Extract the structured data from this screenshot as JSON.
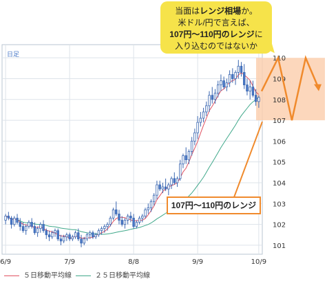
{
  "callout": {
    "line1": "当面は",
    "line1_em": "レンジ相場",
    "line1_end": "か。",
    "line2": "米ドル/円で言えば、",
    "line3_em": "107円～110円のレンジ",
    "line3_end": "に",
    "line4": "入り込むのではないか",
    "range_label": "107円～110円のレンジ"
  },
  "chart_data": {
    "type": "candlestick",
    "period_label": "日足",
    "ylim": [
      100.6,
      110.6
    ],
    "y_ticks": [
      101,
      102,
      103,
      104,
      105,
      106,
      107,
      108,
      109,
      110
    ],
    "x_ticks": [
      "6/9",
      "7/9",
      "8/8",
      "9/9",
      "10/9"
    ],
    "x_tick_index": [
      0,
      22,
      44,
      66,
      87
    ],
    "range_band": [
      107,
      110
    ],
    "forecast_path": [
      108.4,
      110,
      107,
      110,
      108.6
    ],
    "candles": [
      [
        102.2,
        102.5,
        102.0,
        102.4
      ],
      [
        102.4,
        102.6,
        102.2,
        102.3
      ],
      [
        102.3,
        102.4,
        101.8,
        102.0
      ],
      [
        102.0,
        102.4,
        101.9,
        102.3
      ],
      [
        102.3,
        102.5,
        102.0,
        102.1
      ],
      [
        102.1,
        102.3,
        101.7,
        101.9
      ],
      [
        101.9,
        102.1,
        101.6,
        101.7
      ],
      [
        101.7,
        102.0,
        101.5,
        101.9
      ],
      [
        101.9,
        102.2,
        101.8,
        102.1
      ],
      [
        102.1,
        102.3,
        101.8,
        101.9
      ],
      [
        101.9,
        102.1,
        101.5,
        101.6
      ],
      [
        101.6,
        101.9,
        101.4,
        101.8
      ],
      [
        101.8,
        102.1,
        101.6,
        102.0
      ],
      [
        102.0,
        102.2,
        101.6,
        101.7
      ],
      [
        101.7,
        101.8,
        101.3,
        101.5
      ],
      [
        101.5,
        101.7,
        101.2,
        101.4
      ],
      [
        101.4,
        101.7,
        101.3,
        101.6
      ],
      [
        101.6,
        101.8,
        101.4,
        101.7
      ],
      [
        101.7,
        101.8,
        101.2,
        101.3
      ],
      [
        101.3,
        101.5,
        101.0,
        101.2
      ],
      [
        101.2,
        101.5,
        101.1,
        101.4
      ],
      [
        101.4,
        101.6,
        101.2,
        101.5
      ],
      [
        101.5,
        101.6,
        101.2,
        101.3
      ],
      [
        101.3,
        101.5,
        101.2,
        101.4
      ],
      [
        101.4,
        101.7,
        101.3,
        101.6
      ],
      [
        101.6,
        101.8,
        101.2,
        101.3
      ],
      [
        101.3,
        101.5,
        100.9,
        101.1
      ],
      [
        101.1,
        101.4,
        101.0,
        101.3
      ],
      [
        101.3,
        101.6,
        101.2,
        101.5
      ],
      [
        101.5,
        101.7,
        101.3,
        101.6
      ],
      [
        101.6,
        101.7,
        101.3,
        101.4
      ],
      [
        101.4,
        101.6,
        101.3,
        101.5
      ],
      [
        101.5,
        101.8,
        101.4,
        101.7
      ],
      [
        101.7,
        101.9,
        101.5,
        101.8
      ],
      [
        101.8,
        102.0,
        101.6,
        101.9
      ],
      [
        101.9,
        102.1,
        101.7,
        102.0
      ],
      [
        102.0,
        102.4,
        101.9,
        102.3
      ],
      [
        102.3,
        102.8,
        102.2,
        102.7
      ],
      [
        102.7,
        103.1,
        102.4,
        102.5
      ],
      [
        102.5,
        102.7,
        102.0,
        102.2
      ],
      [
        102.2,
        102.4,
        101.9,
        102.0
      ],
      [
        102.0,
        102.3,
        101.8,
        102.2
      ],
      [
        102.2,
        102.5,
        102.0,
        102.4
      ],
      [
        102.4,
        102.6,
        102.1,
        102.3
      ],
      [
        102.3,
        102.5,
        101.8,
        101.9
      ],
      [
        101.9,
        102.2,
        101.8,
        102.1
      ],
      [
        102.1,
        102.4,
        102.0,
        102.3
      ],
      [
        102.3,
        102.5,
        102.1,
        102.4
      ],
      [
        102.4,
        102.8,
        102.3,
        102.7
      ],
      [
        102.7,
        103.0,
        102.5,
        102.8
      ],
      [
        102.8,
        103.2,
        102.6,
        103.1
      ],
      [
        103.1,
        103.5,
        102.9,
        103.4
      ],
      [
        103.4,
        104.1,
        103.2,
        103.9
      ],
      [
        103.9,
        104.1,
        103.6,
        103.7
      ],
      [
        103.7,
        104.0,
        103.5,
        103.8
      ],
      [
        103.8,
        104.2,
        103.6,
        103.7
      ],
      [
        103.7,
        104.0,
        103.4,
        103.9
      ],
      [
        103.9,
        104.3,
        103.7,
        104.2
      ],
      [
        104.2,
        104.5,
        103.9,
        104.0
      ],
      [
        104.0,
        104.3,
        103.8,
        104.2
      ],
      [
        104.2,
        105.1,
        104.1,
        104.9
      ],
      [
        104.9,
        105.4,
        104.7,
        105.3
      ],
      [
        105.3,
        105.7,
        104.9,
        105.1
      ],
      [
        105.1,
        105.6,
        104.9,
        105.5
      ],
      [
        105.5,
        106.2,
        105.3,
        106.0
      ],
      [
        106.0,
        106.6,
        105.8,
        106.4
      ],
      [
        106.4,
        107.2,
        106.1,
        106.9
      ],
      [
        106.9,
        107.4,
        106.7,
        107.1
      ],
      [
        107.1,
        107.6,
        106.9,
        107.4
      ],
      [
        107.4,
        107.9,
        107.2,
        107.7
      ],
      [
        107.7,
        108.4,
        107.4,
        108.2
      ],
      [
        108.2,
        108.6,
        107.8,
        108.0
      ],
      [
        108.0,
        108.5,
        107.8,
        108.3
      ],
      [
        108.3,
        108.9,
        108.1,
        108.7
      ],
      [
        108.7,
        109.2,
        108.4,
        108.9
      ],
      [
        108.9,
        109.1,
        108.5,
        108.6
      ],
      [
        108.6,
        109.0,
        108.4,
        108.8
      ],
      [
        108.8,
        109.4,
        108.6,
        109.2
      ],
      [
        109.2,
        109.5,
        108.8,
        109.0
      ],
      [
        109.0,
        109.4,
        108.7,
        109.3
      ],
      [
        109.3,
        109.9,
        109.0,
        109.6
      ],
      [
        109.6,
        109.8,
        109.1,
        109.3
      ],
      [
        109.3,
        109.7,
        108.5,
        108.7
      ],
      [
        108.7,
        109.0,
        108.2,
        108.4
      ],
      [
        108.4,
        108.9,
        108.0,
        108.6
      ],
      [
        108.6,
        108.9,
        108.1,
        108.2
      ],
      [
        108.2,
        108.5,
        107.7,
        107.9
      ],
      [
        107.9,
        108.2,
        107.6,
        108.1
      ]
    ],
    "series": [
      {
        "name": "５日移動平均線",
        "color": "#e05060"
      },
      {
        "name": "２５日移動平均線",
        "color": "#3fa88a"
      }
    ],
    "colors": {
      "up": "#ffffff",
      "down": "#4a79c8",
      "candle_stroke": "#3a66b0",
      "band": "#fbd0b0",
      "arrow": "#f08a2c",
      "grid": "#dde3ea"
    }
  }
}
